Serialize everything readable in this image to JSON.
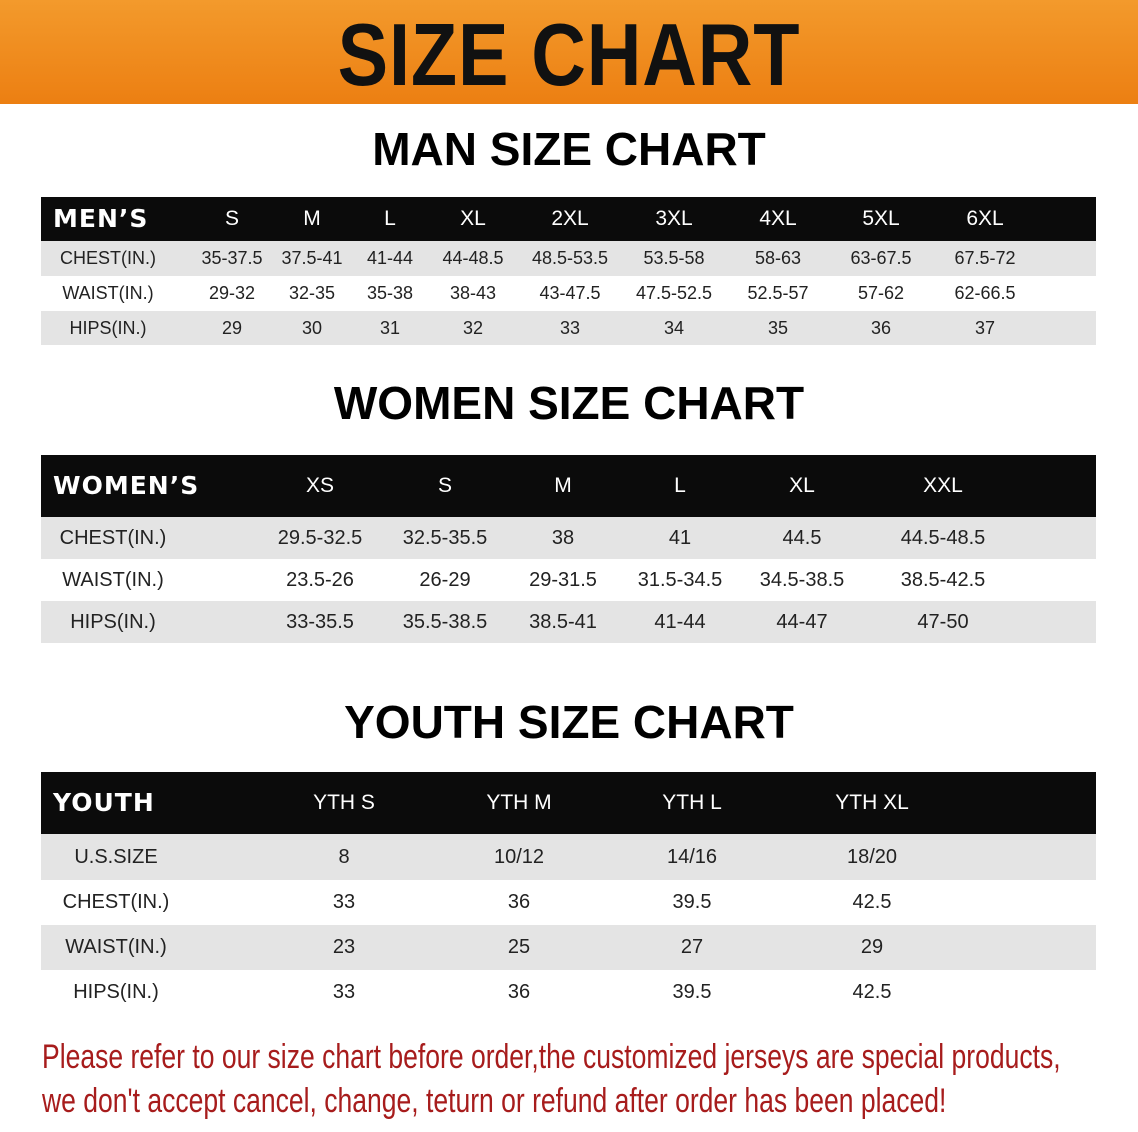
{
  "banner_title": "SIZE CHART",
  "men": {
    "title": "MAN SIZE CHART",
    "header": [
      "MEN’S",
      "S",
      "M",
      "L",
      "XL",
      "2XL",
      "3XL",
      "4XL",
      "5XL",
      "6XL"
    ],
    "rows": [
      [
        "CHEST(IN.)",
        "35-37.5",
        "37.5-41",
        "41-44",
        "44-48.5",
        "48.5-53.5",
        "53.5-58",
        "58-63",
        "63-67.5",
        "67.5-72"
      ],
      [
        "WAIST(IN.)",
        "29-32",
        "32-35",
        "35-38",
        "38-43",
        "43-47.5",
        "47.5-52.5",
        "52.5-57",
        "57-62",
        "62-66.5"
      ],
      [
        "HIPS(IN.)",
        "29",
        "30",
        "31",
        "32",
        "33",
        "34",
        "35",
        "36",
        "37"
      ]
    ]
  },
  "women": {
    "title": "WOMEN SIZE CHART",
    "header": [
      "WOMEN’S",
      "XS",
      "S",
      "M",
      "L",
      "XL",
      "XXL"
    ],
    "rows": [
      [
        "CHEST(IN.)",
        "29.5-32.5",
        "32.5-35.5",
        "38",
        "41",
        "44.5",
        "44.5-48.5"
      ],
      [
        "WAIST(IN.)",
        "23.5-26",
        "26-29",
        "29-31.5",
        "31.5-34.5",
        "34.5-38.5",
        "38.5-42.5"
      ],
      [
        "HIPS(IN.)",
        "33-35.5",
        "35.5-38.5",
        "38.5-41",
        "41-44",
        "44-47",
        "47-50"
      ]
    ]
  },
  "youth": {
    "title": "YOUTH SIZE CHART",
    "header": [
      "YOUTH",
      "YTH S",
      "YTH M",
      "YTH L",
      "YTH XL"
    ],
    "rows": [
      [
        "U.S.SIZE",
        "8",
        "10/12",
        "14/16",
        "18/20"
      ],
      [
        "CHEST(IN.)",
        "33",
        "36",
        "39.5",
        "42.5"
      ],
      [
        "WAIST(IN.)",
        "23",
        "25",
        "27",
        "29"
      ],
      [
        "HIPS(IN.)",
        "33",
        "36",
        "39.5",
        "42.5"
      ]
    ]
  },
  "notice": {
    "line1": "Please refer to our size chart before order,the customized jerseys are special products,",
    "line2": "we don't accept cancel, change, teturn or refund after order has been placed!"
  },
  "colors": {
    "banner": "#ec7f12",
    "header": "#0b0b0b",
    "stripe": "#e4e4e4",
    "notice": "#a71c1c"
  }
}
